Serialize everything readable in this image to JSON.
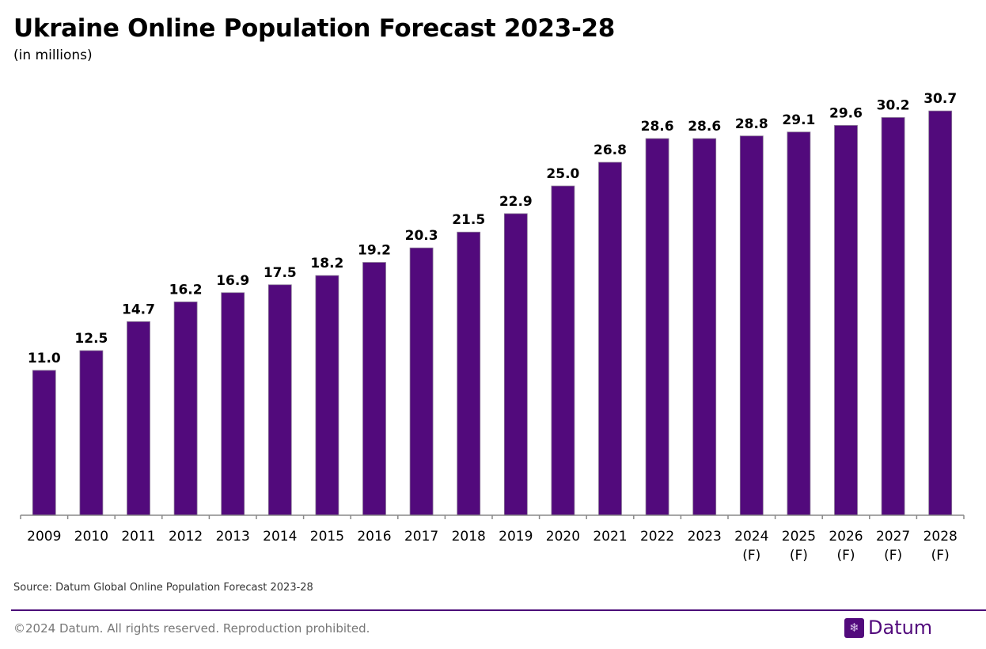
{
  "chart_data": {
    "type": "bar",
    "title": "Ukraine Online Population Forecast 2023-28",
    "subtitle": "(in millions)",
    "categories": [
      "2009",
      "2010",
      "2011",
      "2012",
      "2013",
      "2014",
      "2015",
      "2016",
      "2017",
      "2018",
      "2019",
      "2020",
      "2021",
      "2022",
      "2023",
      "2024\n(F)",
      "2025\n(F)",
      "2026\n(F)",
      "2027\n(F)",
      "2028\n(F)"
    ],
    "values": [
      11.0,
      12.5,
      14.7,
      16.2,
      16.9,
      17.5,
      18.2,
      19.2,
      20.3,
      21.5,
      22.9,
      25.0,
      26.8,
      28.6,
      28.6,
      28.8,
      29.1,
      29.6,
      30.2,
      30.7
    ],
    "ylim": [
      0,
      31
    ],
    "grid": false,
    "bar_color": "#520a7c",
    "xlabel": "",
    "ylabel": ""
  },
  "source": "Source: Datum Global Online Population Forecast 2023-28",
  "footer": {
    "copyright": "©2024 Datum. All rights reserved. Reproduction prohibited.",
    "logo_text": "Datum",
    "logo_icon": "snowflake-icon"
  }
}
